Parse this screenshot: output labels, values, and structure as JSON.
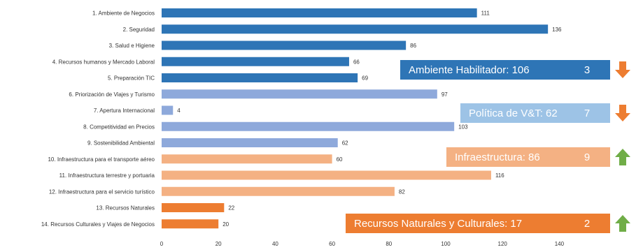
{
  "chart_data": {
    "type": "bar",
    "orientation": "horizontal",
    "categories": [
      "1. Ambiente de Negocios",
      "2. Seguridad",
      "3. Salud e Higiene",
      "4. Recursos humanos y Mercado Laboral",
      "5. Preparación TIC",
      "6. Priorización de Viajes y Turismo",
      "7. Apertura Internacional",
      "8. Competitividad en Precios",
      "9. Sostenibilidad Ambiental",
      "10. Infraestructura para el transporte aéreo",
      "11. Infraestructura terrestre y portuaria",
      "12. Infraestructura para el servicio turístico",
      "13. Recursos Naturales",
      "14. Recursos Culturales y Viajes de Negocios"
    ],
    "values": [
      111,
      136,
      86,
      66,
      69,
      97,
      4,
      103,
      62,
      60,
      116,
      82,
      22,
      20
    ],
    "bar_colors": [
      "#2e75b6",
      "#2e75b6",
      "#2e75b6",
      "#2e75b6",
      "#2e75b6",
      "#8ea9db",
      "#8ea9db",
      "#8ea9db",
      "#8ea9db",
      "#f4b183",
      "#f4b183",
      "#f4b183",
      "#ed7d31",
      "#ed7d31"
    ],
    "x_ticks": [
      "0",
      "20",
      "40",
      "60",
      "80",
      "100",
      "120",
      "140"
    ],
    "xlim": [
      0,
      160
    ],
    "grid": false,
    "legend": "none"
  },
  "callouts": [
    {
      "label": "Ambiente Habilitador: 106",
      "rank": "3",
      "color": "#2e75b6",
      "arrow": "down",
      "arrow_color": "#ed7d31",
      "after_category": 3
    },
    {
      "label": "Política de V&T: 62",
      "rank": "7",
      "color": "#9dc3e6",
      "arrow": "down",
      "arrow_color": "#ed7d31",
      "after_category": 6
    },
    {
      "label": "Infraestructura: 86",
      "rank": "9",
      "color": "#f4b183",
      "arrow": "up",
      "arrow_color": "#70ad47",
      "after_category": 9
    },
    {
      "label": "Recursos Naturales y Culturales: 17",
      "rank": "2",
      "color": "#ed7d31",
      "arrow": "up",
      "arrow_color": "#70ad47",
      "after_category": 13
    }
  ]
}
